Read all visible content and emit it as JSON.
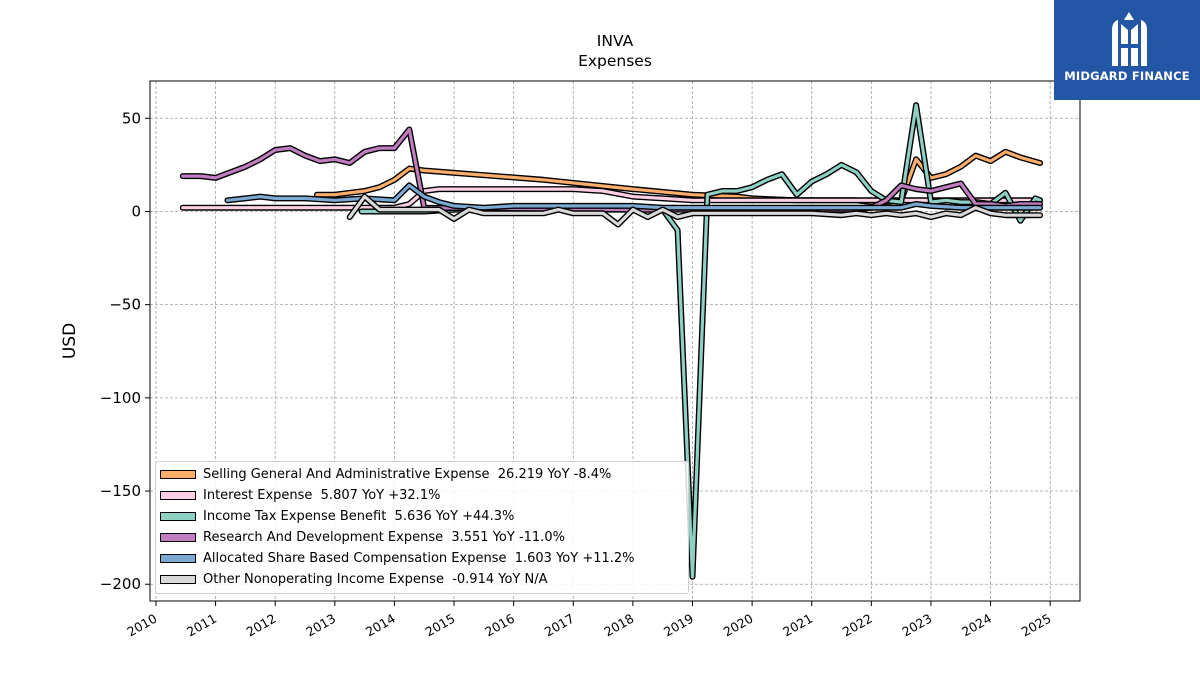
{
  "header": {
    "title": "INVA",
    "subtitle": "Expenses"
  },
  "brand": {
    "name": "MIDGARD FINANCE",
    "color": "#2456a6",
    "icon": "midgard-logo-icon"
  },
  "chart_data": {
    "type": "line",
    "title": "INVA",
    "subtitle": "Expenses",
    "xlabel": "",
    "ylabel": "USD",
    "xlim": [
      2009.9,
      2025.5
    ],
    "ylim": [
      -209,
      70
    ],
    "yticks": [
      50,
      0,
      -50,
      -100,
      -150,
      -200
    ],
    "ytick_labels": [
      "50",
      "0",
      "−50",
      "−100",
      "−150",
      "−200"
    ],
    "xticks": [
      2010,
      2011,
      2012,
      2013,
      2014,
      2015,
      2016,
      2017,
      2018,
      2019,
      2020,
      2021,
      2022,
      2023,
      2024,
      2025
    ],
    "xtick_labels": [
      "2010",
      "2011",
      "2012",
      "2013",
      "2014",
      "2015",
      "2016",
      "2017",
      "2018",
      "2019",
      "2020",
      "2021",
      "2022",
      "2023",
      "2024",
      "2025"
    ],
    "grid": true,
    "legend_position": "lower-left",
    "series": [
      {
        "name": "Selling General And Administrative Expense",
        "legend": "Selling General And Administrative Expense  26.219 YoY -8.4%",
        "color": "#fdae6b",
        "points": [
          [
            2012.7,
            9
          ],
          [
            2013.0,
            9
          ],
          [
            2013.25,
            10
          ],
          [
            2013.5,
            11
          ],
          [
            2013.75,
            13
          ],
          [
            2014.0,
            17
          ],
          [
            2014.25,
            23
          ],
          [
            2014.5,
            22
          ],
          [
            2016.5,
            17
          ],
          [
            2018.0,
            12
          ],
          [
            2019.0,
            9
          ],
          [
            2019.75,
            8
          ],
          [
            2020.0,
            7
          ],
          [
            2020.75,
            6
          ],
          [
            2021.0,
            6
          ],
          [
            2021.75,
            6
          ],
          [
            2022.0,
            5
          ],
          [
            2022.25,
            5
          ],
          [
            2022.5,
            6
          ],
          [
            2022.75,
            28
          ],
          [
            2023.0,
            18
          ],
          [
            2023.25,
            20
          ],
          [
            2023.5,
            24
          ],
          [
            2023.75,
            30
          ],
          [
            2024.0,
            27
          ],
          [
            2024.25,
            32
          ],
          [
            2024.5,
            29
          ],
          [
            2024.83,
            26
          ]
        ]
      },
      {
        "name": "Interest Expense",
        "legend": "Interest Expense  5.807 YoY +32.1%",
        "color": "#fdd0e6",
        "points": [
          [
            2010.45,
            2
          ],
          [
            2014.0,
            2
          ],
          [
            2014.25,
            4
          ],
          [
            2014.5,
            11
          ],
          [
            2014.75,
            12
          ],
          [
            2015.5,
            12
          ],
          [
            2016.0,
            12
          ],
          [
            2016.5,
            12
          ],
          [
            2017.0,
            12
          ],
          [
            2017.5,
            11
          ],
          [
            2018.0,
            8
          ],
          [
            2018.5,
            7
          ],
          [
            2019.0,
            6
          ],
          [
            2020.0,
            6
          ],
          [
            2021.0,
            6
          ],
          [
            2022.0,
            6
          ],
          [
            2023.0,
            6
          ],
          [
            2024.0,
            6
          ],
          [
            2024.83,
            6
          ]
        ]
      },
      {
        "name": "Income Tax Expense Benefit",
        "legend": "Income Tax Expense Benefit  5.636 YoY +44.3%",
        "color": "#8fd0c4",
        "points": [
          [
            2013.45,
            0
          ],
          [
            2014.0,
            0
          ],
          [
            2014.5,
            0
          ],
          [
            2015.0,
            1
          ],
          [
            2016.0,
            1
          ],
          [
            2017.0,
            1
          ],
          [
            2018.0,
            1
          ],
          [
            2018.5,
            1
          ],
          [
            2018.75,
            -10
          ],
          [
            2019.0,
            -196
          ],
          [
            2019.25,
            9
          ],
          [
            2019.5,
            11
          ],
          [
            2019.75,
            11
          ],
          [
            2020.0,
            13
          ],
          [
            2020.25,
            17
          ],
          [
            2020.5,
            20
          ],
          [
            2020.75,
            9
          ],
          [
            2021.0,
            16
          ],
          [
            2021.25,
            20
          ],
          [
            2021.5,
            25
          ],
          [
            2021.75,
            21
          ],
          [
            2022.0,
            11
          ],
          [
            2022.25,
            6
          ],
          [
            2022.5,
            5
          ],
          [
            2022.75,
            57
          ],
          [
            2023.0,
            5
          ],
          [
            2023.25,
            6
          ],
          [
            2023.5,
            5
          ],
          [
            2023.75,
            5
          ],
          [
            2024.0,
            4
          ],
          [
            2024.25,
            10
          ],
          [
            2024.5,
            -5
          ],
          [
            2024.75,
            7
          ],
          [
            2024.83,
            6
          ]
        ]
      },
      {
        "name": "Research And Development Expense",
        "legend": "Research And Development Expense  3.551 YoY -11.0%",
        "color": "#c07ec0",
        "points": [
          [
            2010.45,
            19
          ],
          [
            2010.75,
            19
          ],
          [
            2011.0,
            18
          ],
          [
            2011.25,
            21
          ],
          [
            2011.5,
            24
          ],
          [
            2011.75,
            28
          ],
          [
            2012.0,
            33
          ],
          [
            2012.25,
            34
          ],
          [
            2012.5,
            30
          ],
          [
            2012.75,
            27
          ],
          [
            2013.0,
            28
          ],
          [
            2013.25,
            26
          ],
          [
            2013.5,
            32
          ],
          [
            2013.75,
            34
          ],
          [
            2014.0,
            34
          ],
          [
            2014.25,
            44
          ],
          [
            2014.5,
            2
          ],
          [
            2018.0,
            1
          ],
          [
            2021.75,
            1
          ],
          [
            2022.0,
            2
          ],
          [
            2022.25,
            6
          ],
          [
            2022.5,
            14
          ],
          [
            2022.75,
            12
          ],
          [
            2023.0,
            11
          ],
          [
            2023.25,
            13
          ],
          [
            2023.5,
            15
          ],
          [
            2023.75,
            4
          ],
          [
            2024.0,
            4
          ],
          [
            2024.25,
            3
          ],
          [
            2024.5,
            4
          ],
          [
            2024.83,
            4
          ]
        ]
      },
      {
        "name": "Allocated Share Based Compensation Expense",
        "legend": "Allocated Share Based Compensation Expense  1.603 YoY +11.2%",
        "color": "#7ba9d1",
        "points": [
          [
            2011.2,
            6
          ],
          [
            2011.5,
            7
          ],
          [
            2011.75,
            8
          ],
          [
            2012.0,
            7
          ],
          [
            2012.5,
            7
          ],
          [
            2013.0,
            6
          ],
          [
            2013.5,
            7
          ],
          [
            2014.0,
            6
          ],
          [
            2014.25,
            14
          ],
          [
            2014.5,
            8
          ],
          [
            2014.75,
            5
          ],
          [
            2015.0,
            3
          ],
          [
            2015.5,
            2
          ],
          [
            2016.0,
            3
          ],
          [
            2016.5,
            3
          ],
          [
            2017.0,
            3
          ],
          [
            2017.5,
            3
          ],
          [
            2018.0,
            3
          ],
          [
            2018.5,
            2
          ],
          [
            2019.0,
            2
          ],
          [
            2020.0,
            2
          ],
          [
            2021.0,
            2
          ],
          [
            2022.0,
            2
          ],
          [
            2022.5,
            2
          ],
          [
            2022.75,
            4
          ],
          [
            2023.0,
            3
          ],
          [
            2023.5,
            2
          ],
          [
            2024.0,
            2
          ],
          [
            2024.5,
            2
          ],
          [
            2024.83,
            2
          ]
        ]
      },
      {
        "name": "Other Nonoperating Income Expense",
        "legend": "Other Nonoperating Income Expense  -0.914 YoY N/A",
        "color": "#d9d9d9",
        "points": [
          [
            2013.25,
            -3
          ],
          [
            2013.5,
            8
          ],
          [
            2013.75,
            1
          ],
          [
            2014.0,
            1
          ],
          [
            2014.5,
            1
          ],
          [
            2014.75,
            1
          ],
          [
            2015.0,
            -4
          ],
          [
            2015.25,
            1
          ],
          [
            2015.5,
            -1
          ],
          [
            2016.0,
            -1
          ],
          [
            2016.5,
            -1
          ],
          [
            2016.75,
            1
          ],
          [
            2017.0,
            -1
          ],
          [
            2017.5,
            -1
          ],
          [
            2017.75,
            -7
          ],
          [
            2018.0,
            1
          ],
          [
            2018.25,
            -3
          ],
          [
            2018.5,
            1
          ],
          [
            2018.75,
            -3
          ],
          [
            2019.0,
            -1
          ],
          [
            2019.5,
            -1
          ],
          [
            2020.0,
            -1
          ],
          [
            2020.5,
            -1
          ],
          [
            2021.0,
            -1
          ],
          [
            2021.5,
            -2
          ],
          [
            2021.75,
            -1
          ],
          [
            2022.0,
            -2
          ],
          [
            2022.25,
            -1
          ],
          [
            2022.5,
            -2
          ],
          [
            2022.75,
            -1
          ],
          [
            2023.0,
            -3
          ],
          [
            2023.25,
            -1
          ],
          [
            2023.5,
            -2
          ],
          [
            2023.75,
            2
          ],
          [
            2024.0,
            -1
          ],
          [
            2024.25,
            -2
          ],
          [
            2024.5,
            -2
          ],
          [
            2024.83,
            -2
          ]
        ]
      }
    ]
  }
}
